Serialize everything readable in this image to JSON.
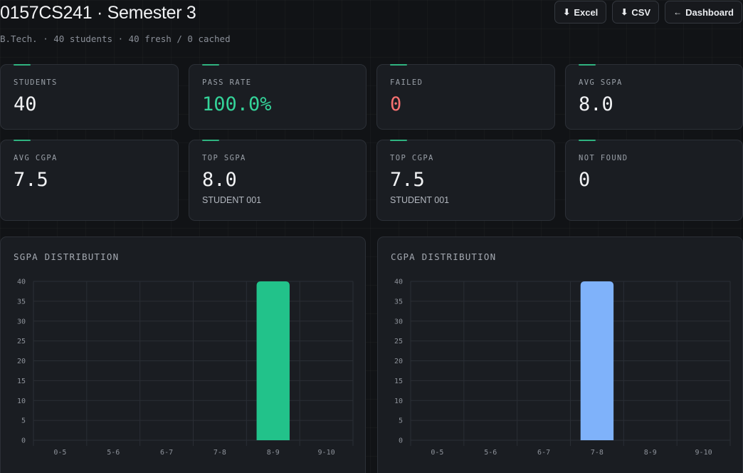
{
  "header": {
    "title": "0157CS241 · Semester 3",
    "subtitle": "B.Tech. · 40 students · 40 fresh / 0 cached"
  },
  "actions": [
    {
      "icon": "download-icon",
      "glyph": "⬇",
      "label": "Excel"
    },
    {
      "icon": "download-icon",
      "glyph": "⬇",
      "label": "CSV"
    },
    {
      "icon": "arrow-left-icon",
      "glyph": "←",
      "label": "Dashboard"
    }
  ],
  "stats": [
    {
      "label": "STUDENTS",
      "value": "40"
    },
    {
      "label": "PASS RATE",
      "value": "100.0%",
      "color": "#34d399"
    },
    {
      "label": "FAILED",
      "value": "0",
      "color": "#f87171"
    },
    {
      "label": "AVG SGPA",
      "value": "8.0"
    },
    {
      "label": "AVG CGPA",
      "value": "7.5"
    },
    {
      "label": "TOP SGPA",
      "value": "8.0",
      "sub": "STUDENT 001"
    },
    {
      "label": "TOP CGPA",
      "value": "7.5",
      "sub": "STUDENT 001"
    },
    {
      "label": "NOT FOUND",
      "value": "0"
    }
  ],
  "colors": {
    "accent": "#2fb380",
    "sgpa_bar": "#22c28a",
    "cgpa_bar": "#7fb2fa",
    "pass": "#34d399",
    "fail": "#f87171"
  },
  "chart_data": [
    {
      "type": "bar",
      "title": "SGPA DISTRIBUTION",
      "categories": [
        "0-5",
        "5-6",
        "6-7",
        "7-8",
        "8-9",
        "9-10"
      ],
      "values": [
        0,
        0,
        0,
        0,
        40,
        0
      ],
      "ylim": [
        0,
        40
      ],
      "yticks": [
        0,
        5,
        10,
        15,
        20,
        25,
        30,
        35,
        40
      ],
      "color": "#22c28a",
      "grid": true
    },
    {
      "type": "bar",
      "title": "CGPA DISTRIBUTION",
      "categories": [
        "0-5",
        "5-6",
        "6-7",
        "7-8",
        "8-9",
        "9-10"
      ],
      "values": [
        0,
        0,
        0,
        40,
        0,
        0
      ],
      "ylim": [
        0,
        40
      ],
      "yticks": [
        0,
        5,
        10,
        15,
        20,
        25,
        30,
        35,
        40
      ],
      "color": "#7fb2fa",
      "grid": true
    }
  ]
}
